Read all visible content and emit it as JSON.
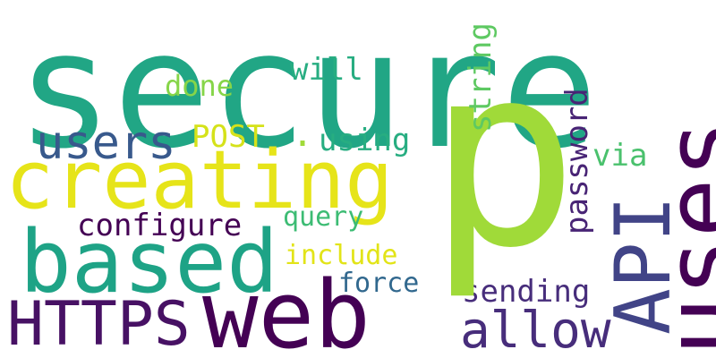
{
  "words": {
    "secure": "secure",
    "p": "p",
    "creating": "creating",
    "based": "based",
    "web": "web",
    "https": "HTTPS",
    "uses": "uses",
    "api": "API",
    "allow": "allow",
    "users": "users",
    "post": "POST",
    "using": "using",
    "will": "will",
    "done": "done",
    "string": "string",
    "password": "password",
    "via": "via",
    "configure": "configure",
    "query": "query",
    "include": "include",
    "force": "force",
    "sending": "sending",
    "dot": "."
  },
  "colors": {
    "background": "#ffffff",
    "palette": [
      "#440154",
      "#472d7b",
      "#414487",
      "#31688e",
      "#21a685",
      "#3dbc74",
      "#86d549",
      "#a0da39",
      "#e6e419"
    ]
  }
}
